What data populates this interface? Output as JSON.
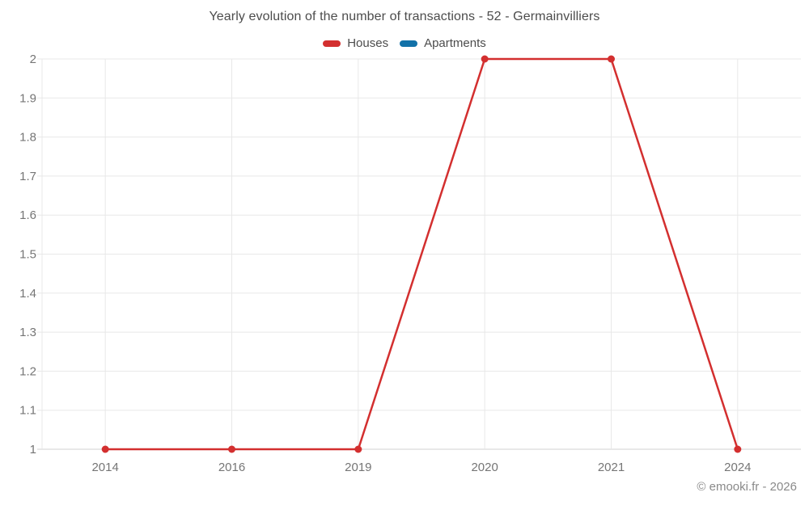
{
  "chart_data": {
    "type": "line",
    "title": "Yearly evolution of the number of transactions - 52 - Germainvilliers",
    "categories": [
      "2014",
      "2016",
      "2019",
      "2020",
      "2021",
      "2024"
    ],
    "series": [
      {
        "name": "Houses",
        "color": "#d32f2f",
        "values": [
          1,
          1,
          1,
          2,
          2,
          1
        ]
      },
      {
        "name": "Apartments",
        "color": "#1271a8",
        "values": [
          null,
          null,
          null,
          null,
          null,
          null
        ]
      }
    ],
    "ylim": [
      1,
      2
    ],
    "ytick_step": 0.1,
    "ytick_labels": [
      "1",
      "1.1",
      "1.2",
      "1.3",
      "1.4",
      "1.5",
      "1.6",
      "1.7",
      "1.8",
      "1.9",
      "2"
    ],
    "xlabel": "",
    "ylabel": "",
    "grid": true,
    "legend_position": "top-center",
    "marker": "circle",
    "colors": {
      "grid_line": "#e8e8e8",
      "axis_line": "#d0d0d0",
      "tick_label": "#757575",
      "title_text": "#4c4c4c"
    }
  },
  "footer": {
    "credit": "© emooki.fr - 2026"
  }
}
